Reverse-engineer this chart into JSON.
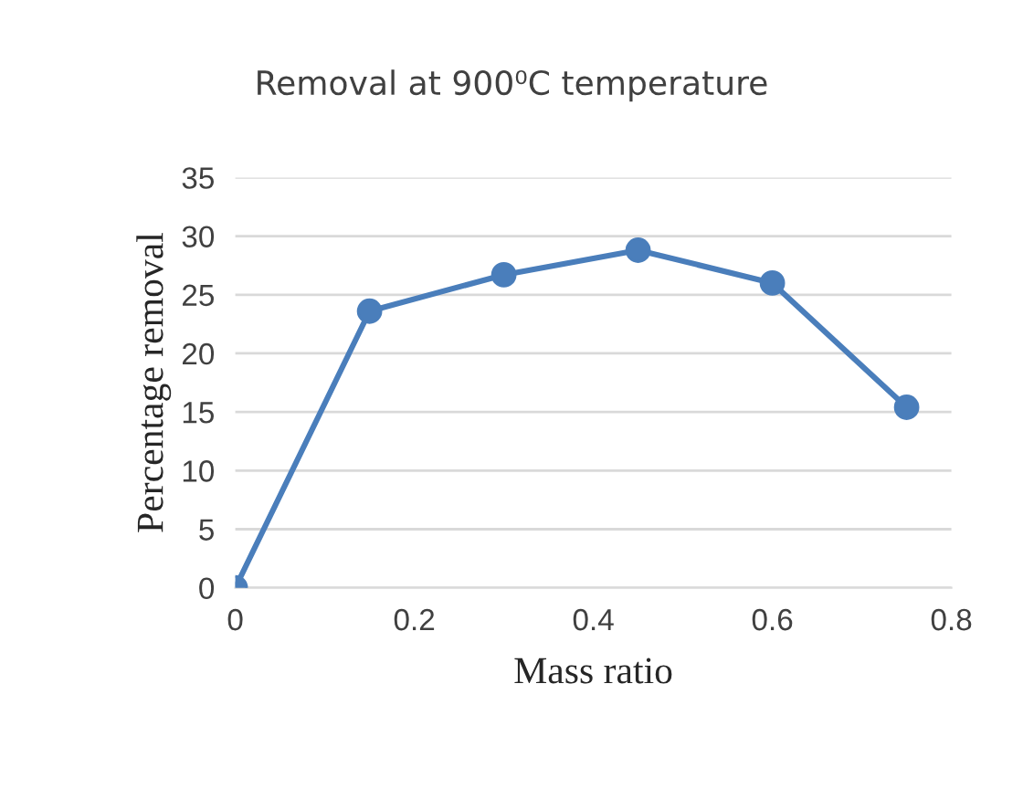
{
  "chart_data": {
    "type": "line",
    "title": "Removal at 900⁰C temperature",
    "xlabel": "Mass ratio",
    "ylabel": "Percentage removal",
    "x": [
      0,
      0.15,
      0.3,
      0.45,
      0.6,
      0.75
    ],
    "series": [
      {
        "color": "#4a7ebb",
        "values": [
          0,
          23.6,
          26.7,
          28.8,
          26.0,
          15.4
        ]
      }
    ],
    "xlim": [
      0,
      0.8
    ],
    "xticks": [
      0,
      0.2,
      0.4,
      0.6,
      0.8
    ],
    "ylim": [
      0,
      35
    ],
    "yticks": [
      0,
      5,
      10,
      15,
      20,
      25,
      30,
      35
    ],
    "grid": "y",
    "marker": "circle",
    "line_style": "solid",
    "legend": false
  }
}
